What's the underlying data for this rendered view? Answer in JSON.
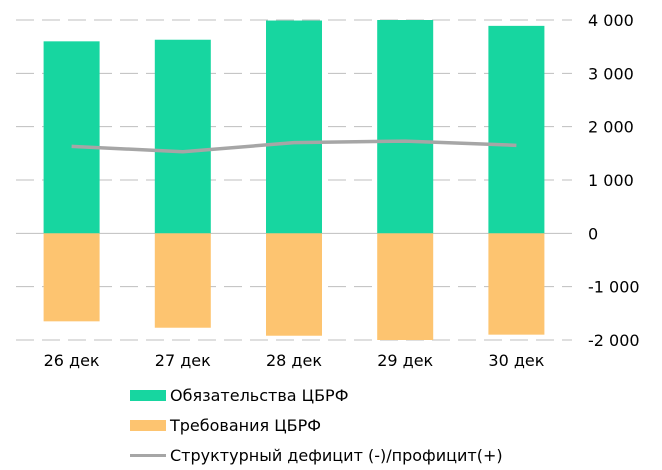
{
  "chart_data": {
    "type": "bar",
    "categories": [
      "26 дек",
      "27 дек",
      "28 дек",
      "29 дек",
      "30 дек"
    ],
    "series": [
      {
        "name": "Обязательства ЦБРФ",
        "kind": "bar",
        "color": "#17d6a0",
        "values": [
          3600,
          3630,
          3990,
          4000,
          3890
        ]
      },
      {
        "name": "Требования ЦБРФ",
        "kind": "bar",
        "color": "#fdc470",
        "values": [
          -1650,
          -1770,
          -1920,
          -2000,
          -1900
        ]
      },
      {
        "name": "Структурный дефицит (-)/профицит(+)",
        "kind": "line",
        "color": "#a6a6a6",
        "values": [
          1630,
          1530,
          1700,
          1730,
          1650
        ]
      }
    ],
    "ylim": [
      -2000,
      4000
    ],
    "yticks": [
      "4 000",
      "3 000",
      "2 000",
      "1 000",
      "0",
      "-1 000",
      "-2 000"
    ],
    "ytick_values": [
      4000,
      3000,
      2000,
      1000,
      0,
      -1000,
      -2000
    ],
    "grid": true,
    "yaxis_side": "right",
    "legend_position": "bottom"
  }
}
